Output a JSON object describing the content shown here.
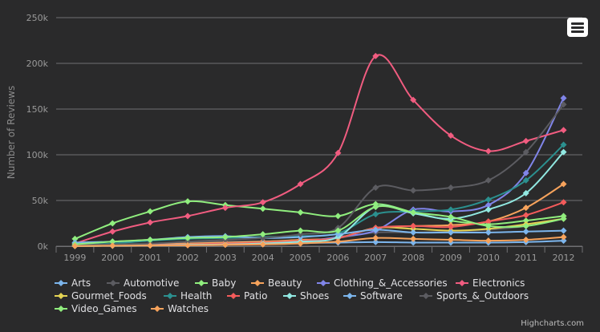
{
  "chart_data": {
    "type": "line",
    "title": "",
    "xlabel": "",
    "ylabel": "Number of Reviews",
    "categories": [
      "1999",
      "2000",
      "2001",
      "2002",
      "2003",
      "2004",
      "2005",
      "2006",
      "2007",
      "2008",
      "2009",
      "2010",
      "2011",
      "2012"
    ],
    "y_ticks": [
      "0k",
      "50k",
      "100k",
      "150k",
      "200k",
      "250k"
    ],
    "ylim": [
      0,
      250000
    ],
    "grid": true,
    "legend": "bottom",
    "credit": "Highcharts.com",
    "series": [
      {
        "name": "Arts",
        "color": "#7cb5ec",
        "values": [
          500,
          1000,
          1500,
          2000,
          2500,
          3000,
          3500,
          4000,
          4500,
          4000,
          4000,
          4000,
          4500,
          6000
        ]
      },
      {
        "name": "Automotive",
        "color": "#5c5c61",
        "values": [
          1000,
          2000,
          3000,
          4000,
          5000,
          5500,
          6000,
          9000,
          15000,
          15000,
          16000,
          18000,
          22000,
          30000
        ]
      },
      {
        "name": "Baby",
        "color": "#90ee7e",
        "values": [
          8000,
          25000,
          38000,
          49000,
          45000,
          41000,
          37000,
          33000,
          46000,
          37000,
          28000,
          24000,
          28000,
          33000
        ]
      },
      {
        "name": "Beauty",
        "color": "#f7a35c",
        "values": [
          500,
          1000,
          2000,
          3000,
          4000,
          5000,
          7000,
          9000,
          20000,
          22000,
          23000,
          27000,
          42000,
          68000
        ]
      },
      {
        "name": "Clothing_&_Accessories",
        "color": "#8085e9",
        "values": [
          300,
          500,
          1000,
          1500,
          2000,
          2500,
          5000,
          10000,
          17000,
          40000,
          38000,
          45000,
          80000,
          162000
        ]
      },
      {
        "name": "Electronics",
        "color": "#f15c80",
        "values": [
          3000,
          16000,
          26000,
          33000,
          42000,
          48000,
          68000,
          102000,
          208000,
          160000,
          121000,
          104000,
          115000,
          127000
        ]
      },
      {
        "name": "Gourmet_Foods",
        "color": "#e4d354",
        "values": [
          200,
          500,
          1000,
          2000,
          3000,
          4000,
          6000,
          9000,
          20000,
          19000,
          17000,
          19000,
          24000,
          30000
        ]
      },
      {
        "name": "Health",
        "color": "#2b908f",
        "values": [
          1000,
          3000,
          6000,
          8000,
          9000,
          10000,
          11000,
          14000,
          35000,
          38000,
          40000,
          51000,
          72000,
          111000
        ]
      },
      {
        "name": "Patio",
        "color": "#f45b5b",
        "values": [
          500,
          1000,
          1500,
          2000,
          3000,
          4000,
          6000,
          9000,
          20000,
          22000,
          21000,
          27000,
          34000,
          48000
        ]
      },
      {
        "name": "Shoes",
        "color": "#91e8e1",
        "values": [
          200,
          500,
          1000,
          1500,
          2000,
          3000,
          5000,
          10000,
          43000,
          36000,
          30000,
          40000,
          58000,
          103000
        ]
      },
      {
        "name": "Software",
        "color": "#7cb5ec",
        "values": [
          4000,
          5000,
          7000,
          10000,
          11000,
          9000,
          10000,
          13000,
          18000,
          15000,
          15000,
          15000,
          16000,
          17000
        ]
      },
      {
        "name": "Sports_&_Outdoors",
        "color": "#5c5c61",
        "values": [
          1000,
          2000,
          3000,
          5000,
          7000,
          9000,
          13000,
          20000,
          64000,
          61000,
          64000,
          72000,
          103000,
          155000
        ]
      },
      {
        "name": "Video_Games",
        "color": "#90ee7e",
        "values": [
          2000,
          5000,
          7000,
          9000,
          10000,
          13000,
          17000,
          17000,
          43000,
          37000,
          32000,
          22000,
          22000,
          30000
        ]
      },
      {
        "name": "Watches",
        "color": "#f7a35c",
        "values": [
          200,
          500,
          800,
          1000,
          1500,
          2000,
          3000,
          5000,
          9000,
          8000,
          7000,
          6000,
          7000,
          10000
        ]
      }
    ]
  }
}
